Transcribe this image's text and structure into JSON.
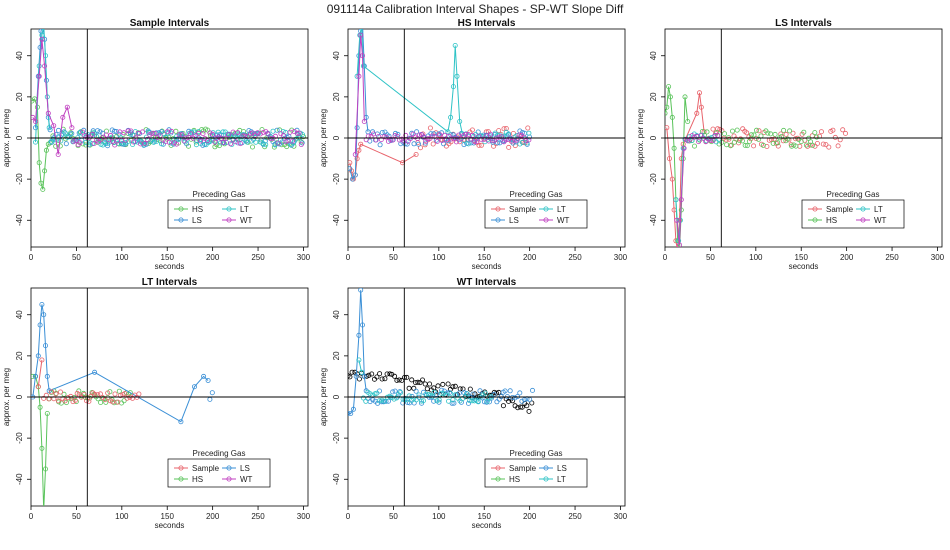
{
  "figure_title": "091114a   Calibration Interval Shapes - SP-WT Slope Diff",
  "colors": {
    "Sample": "#e8636b",
    "HS": "#59c35a",
    "LS": "#3a8fd6",
    "LT": "#2ec3c6",
    "WT": "#c040c0",
    "black": "#000000"
  },
  "chart_data": [
    {
      "type": "scatter",
      "title": "Sample Intervals",
      "xlabel": "seconds",
      "ylabel": "approx. per meg",
      "xlim": [
        0,
        305
      ],
      "ylim": [
        -53,
        53
      ],
      "xticks": [
        0,
        50,
        100,
        150,
        200,
        250,
        300
      ],
      "yticks": [
        -40,
        -20,
        0,
        20,
        40
      ],
      "vline": 62,
      "hline": 0,
      "legend": {
        "title": "Preceding Gas",
        "position": "bottom-center",
        "entries": [
          "HS",
          "LT",
          "LS",
          "WT"
        ]
      },
      "series": [
        {
          "name": "HS",
          "xmax": 300,
          "noise": 4.5,
          "spikes": [
            [
              1,
              18
            ],
            [
              4,
              19
            ],
            [
              7,
              15
            ],
            [
              9,
              -12
            ],
            [
              11,
              -22
            ],
            [
              13,
              -25
            ],
            [
              15,
              -16
            ],
            [
              17,
              -6
            ],
            [
              19,
              -3
            ]
          ]
        },
        {
          "name": "LS",
          "xmax": 300,
          "noise": 4.0,
          "spikes": [
            [
              5,
              5
            ],
            [
              8,
              30
            ],
            [
              10,
              44
            ],
            [
              11,
              52
            ],
            [
              13,
              55
            ],
            [
              15,
              48
            ],
            [
              17,
              28
            ],
            [
              19,
              10
            ],
            [
              21,
              4
            ]
          ]
        },
        {
          "name": "LT",
          "xmax": 300,
          "noise": 3.5,
          "spikes": [
            [
              5,
              -2
            ],
            [
              9,
              35
            ],
            [
              12,
              50
            ],
            [
              14,
              55
            ],
            [
              16,
              40
            ],
            [
              18,
              20
            ],
            [
              20,
              5
            ]
          ]
        },
        {
          "name": "WT",
          "xmax": 300,
          "noise": 3.5,
          "spikes": [
            [
              2,
              10
            ],
            [
              5,
              8
            ],
            [
              9,
              30
            ],
            [
              12,
              48
            ],
            [
              15,
              35
            ],
            [
              19,
              12
            ],
            [
              25,
              6
            ],
            [
              30,
              -8
            ],
            [
              35,
              10
            ],
            [
              40,
              15
            ],
            [
              45,
              5
            ]
          ]
        }
      ]
    },
    {
      "type": "scatter",
      "title": "HS Intervals",
      "xlabel": "seconds",
      "ylabel": "approx. per meg",
      "xlim": [
        0,
        305
      ],
      "ylim": [
        -53,
        53
      ],
      "xticks": [
        0,
        50,
        100,
        150,
        200,
        250,
        300
      ],
      "yticks": [
        -40,
        -20,
        0,
        20,
        40
      ],
      "vline": 62,
      "hline": 0,
      "legend": {
        "title": "Preceding Gas",
        "position": "bottom-center",
        "entries": [
          "Sample",
          "LT",
          "LS",
          "WT"
        ]
      },
      "series": [
        {
          "name": "Sample",
          "xmax": 200,
          "noise": 5.0,
          "spikes": [
            [
              2,
              -12
            ],
            [
              4,
              -16
            ],
            [
              6,
              -20
            ],
            [
              8,
              -18
            ],
            [
              10,
              -10
            ],
            [
              12,
              -6
            ],
            [
              14,
              -3
            ],
            [
              60,
              -12
            ],
            [
              75,
              -8
            ]
          ]
        },
        {
          "name": "LS",
          "xmax": 200,
          "noise": 3.5,
          "spikes": [
            [
              2,
              -15
            ],
            [
              5,
              -20
            ],
            [
              8,
              -18
            ],
            [
              10,
              5
            ],
            [
              12,
              40
            ],
            [
              14,
              52
            ],
            [
              16,
              55
            ],
            [
              18,
              35
            ],
            [
              20,
              10
            ],
            [
              22,
              3
            ]
          ]
        },
        {
          "name": "LT",
          "xmax": 200,
          "noise": 3.0,
          "spikes": [
            [
              10,
              30
            ],
            [
              13,
              50
            ],
            [
              15,
              54
            ],
            [
              17,
              35
            ],
            [
              110,
              3
            ],
            [
              113,
              10
            ],
            [
              116,
              25
            ],
            [
              118,
              45
            ],
            [
              120,
              30
            ],
            [
              123,
              8
            ],
            [
              126,
              2
            ]
          ]
        },
        {
          "name": "WT",
          "xmax": 200,
          "noise": 2.0,
          "spikes": [
            [
              8,
              -8
            ],
            [
              12,
              30
            ],
            [
              14,
              50
            ],
            [
              16,
              40
            ],
            [
              18,
              8
            ]
          ]
        }
      ]
    },
    {
      "type": "scatter",
      "title": "LS Intervals",
      "xlabel": "seconds",
      "ylabel": "approx. per meg",
      "xlim": [
        0,
        305
      ],
      "ylim": [
        -53,
        53
      ],
      "xticks": [
        0,
        50,
        100,
        150,
        200,
        250,
        300
      ],
      "yticks": [
        -40,
        -20,
        0,
        20,
        40
      ],
      "vline": 62,
      "hline": 0,
      "legend": {
        "title": "Preceding Gas",
        "position": "bottom-center",
        "entries": [
          "Sample",
          "LT",
          "HS",
          "WT"
        ]
      },
      "series": [
        {
          "name": "Sample",
          "xmax": 200,
          "noise": 4.5,
          "spikes": [
            [
              2,
              5
            ],
            [
              5,
              -10
            ],
            [
              8,
              -20
            ],
            [
              10,
              -35
            ],
            [
              12,
              -50
            ],
            [
              14,
              -55
            ],
            [
              16,
              -40
            ],
            [
              18,
              -10
            ],
            [
              20,
              -3
            ],
            [
              35,
              12
            ],
            [
              38,
              22
            ],
            [
              40,
              15
            ],
            [
              43,
              3
            ]
          ]
        },
        {
          "name": "HS",
          "xmax": 170,
          "noise": 4.0,
          "spikes": [
            [
              0,
              12
            ],
            [
              2,
              15
            ],
            [
              4,
              25
            ],
            [
              6,
              20
            ],
            [
              8,
              10
            ],
            [
              10,
              -5
            ],
            [
              12,
              -30
            ],
            [
              14,
              -50
            ],
            [
              16,
              -55
            ],
            [
              18,
              -35
            ],
            [
              20,
              -10
            ],
            [
              22,
              20
            ],
            [
              25,
              8
            ]
          ]
        },
        {
          "name": "LT",
          "xmax": 60,
          "noise": 2.0,
          "spikes": [
            [
              12,
              -30
            ],
            [
              15,
              -50
            ],
            [
              17,
              -40
            ],
            [
              20,
              -5
            ]
          ]
        },
        {
          "name": "WT",
          "xmax": 60,
          "noise": 2.0,
          "spikes": [
            [
              13,
              -40
            ],
            [
              16,
              -52
            ],
            [
              18,
              -30
            ],
            [
              21,
              -5
            ]
          ]
        }
      ]
    },
    {
      "type": "scatter",
      "title": "LT Intervals",
      "xlabel": "seconds",
      "ylabel": "approx. per meg",
      "xlim": [
        0,
        305
      ],
      "ylim": [
        -53,
        53
      ],
      "xticks": [
        0,
        50,
        100,
        150,
        200,
        250,
        300
      ],
      "yticks": [
        -40,
        -20,
        0,
        20,
        40
      ],
      "vline": 62,
      "hline": 0,
      "legend": {
        "title": "Preceding Gas",
        "position": "bottom-center",
        "entries": [
          "Sample",
          "LS",
          "HS",
          "WT"
        ]
      },
      "series": [
        {
          "name": "HS",
          "xmax": 110,
          "noise": 3.0,
          "spikes": [
            [
              2,
              10
            ],
            [
              5,
              10
            ],
            [
              8,
              5
            ],
            [
              10,
              -5
            ],
            [
              12,
              -25
            ],
            [
              14,
              -55
            ],
            [
              16,
              -35
            ],
            [
              18,
              -8
            ]
          ]
        },
        {
          "name": "LS",
          "xmax": 200,
          "noise": 4.0,
          "spikes": [
            [
              2,
              0
            ],
            [
              5,
              10
            ],
            [
              8,
              20
            ],
            [
              10,
              35
            ],
            [
              12,
              45
            ],
            [
              14,
              40
            ],
            [
              16,
              25
            ],
            [
              18,
              10
            ],
            [
              20,
              3
            ],
            [
              70,
              12
            ],
            [
              165,
              -12
            ],
            [
              180,
              5
            ],
            [
              190,
              10
            ],
            [
              195,
              8
            ]
          ]
        },
        {
          "name": "Sample",
          "xmax": 120,
          "noise": 2.5,
          "spikes": [
            [
              8,
              5
            ],
            [
              12,
              18
            ]
          ]
        }
      ]
    },
    {
      "type": "scatter",
      "title": "WT Intervals",
      "xlabel": "seconds",
      "ylabel": "approx. per meg",
      "xlim": [
        0,
        305
      ],
      "ylim": [
        -53,
        53
      ],
      "xticks": [
        0,
        50,
        100,
        150,
        200,
        250,
        300
      ],
      "yticks": [
        -40,
        -20,
        0,
        20,
        40
      ],
      "vline": 62,
      "hline": 0,
      "legend": {
        "title": "Preceding Gas",
        "position": "bottom-center",
        "entries": [
          "Sample",
          "LS",
          "HS",
          "LT"
        ]
      },
      "series": [
        {
          "name": "black",
          "xmax": 205,
          "noise": 3.0,
          "trend": [
            [
              0,
              11
            ],
            [
              20,
              12
            ],
            [
              50,
              8
            ],
            [
              100,
              4
            ],
            [
              150,
              1
            ],
            [
              205,
              -5
            ]
          ],
          "spikes": []
        },
        {
          "name": "LS",
          "xmax": 205,
          "noise": 3.5,
          "spikes": [
            [
              0,
              -8
            ],
            [
              3,
              -8
            ],
            [
              6,
              -6
            ],
            [
              9,
              10
            ],
            [
              12,
              30
            ],
            [
              14,
              52
            ],
            [
              16,
              35
            ],
            [
              18,
              10
            ],
            [
              20,
              3
            ]
          ]
        },
        {
          "name": "LT",
          "xmax": 160,
          "noise": 2.5,
          "spikes": [
            [
              12,
              18
            ],
            [
              15,
              12
            ]
          ]
        }
      ]
    }
  ]
}
